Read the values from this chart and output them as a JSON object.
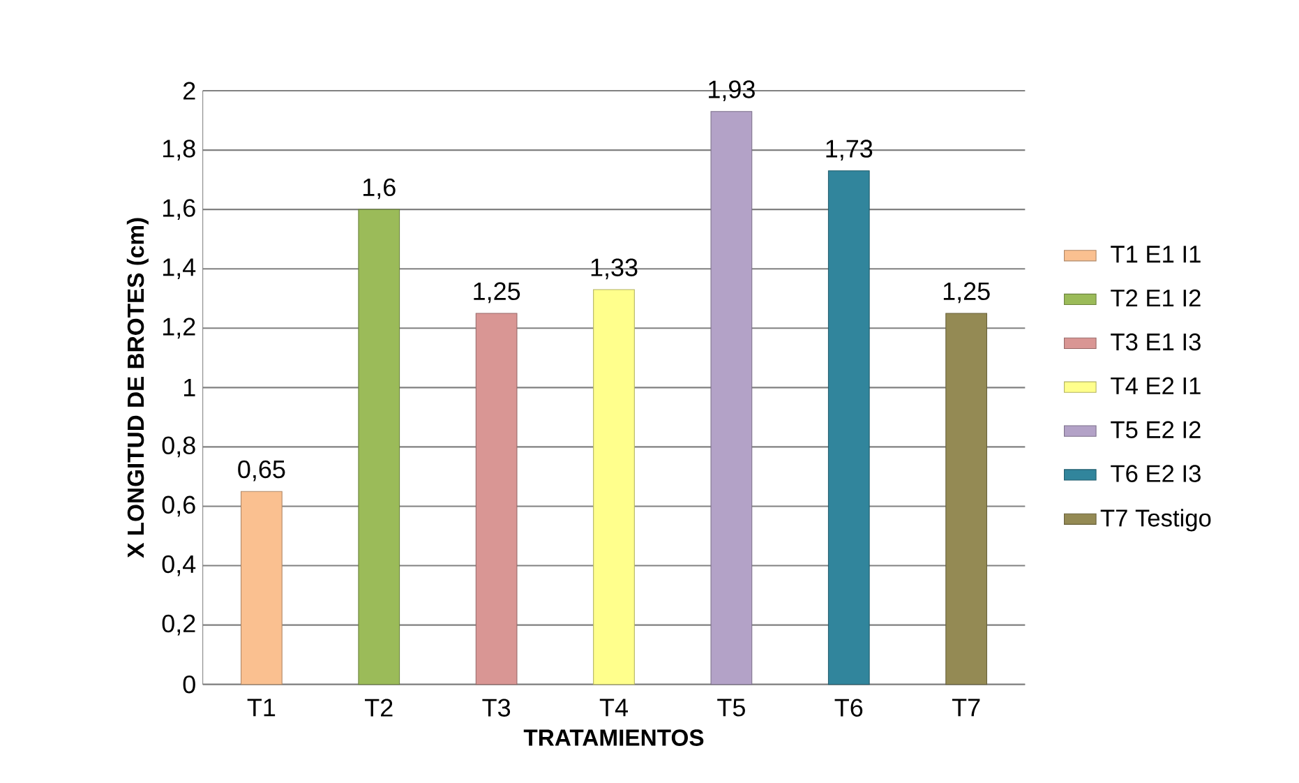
{
  "chart_data": {
    "type": "bar",
    "xlabel": "TRATAMIENTOS",
    "ylabel": "X LONGITUD DE BROTES (cm)",
    "categories": [
      "T1",
      "T2",
      "T3",
      "T4",
      "T5",
      "T6",
      "T7"
    ],
    "series": [
      {
        "name": "T1 E1 I1",
        "color": "#fac090",
        "values": [
          0.65,
          null,
          null,
          null,
          null,
          null,
          null
        ],
        "value_labels": [
          "0,65",
          null,
          null,
          null,
          null,
          null,
          null
        ]
      },
      {
        "name": "T2 E1 I2",
        "color": "#9bbb59",
        "values": [
          null,
          1.6,
          null,
          null,
          null,
          null,
          null
        ],
        "value_labels": [
          null,
          "1,6",
          null,
          null,
          null,
          null,
          null
        ]
      },
      {
        "name": "T3 E1 I3",
        "color": "#d99694",
        "values": [
          null,
          null,
          1.25,
          null,
          null,
          null,
          null
        ],
        "value_labels": [
          null,
          null,
          "1,25",
          null,
          null,
          null,
          null
        ]
      },
      {
        "name": "T4 E2 I1",
        "color": "#ffff8c",
        "values": [
          null,
          null,
          null,
          1.33,
          null,
          null,
          null
        ],
        "value_labels": [
          null,
          null,
          null,
          "1,33",
          null,
          null,
          null
        ]
      },
      {
        "name": "T5 E2 I2",
        "color": "#b3a2c7",
        "values": [
          null,
          null,
          null,
          null,
          1.93,
          null,
          null
        ],
        "value_labels": [
          null,
          null,
          null,
          null,
          "1,93",
          null,
          null
        ]
      },
      {
        "name": "T6 E2 I3",
        "color": "#31859c",
        "values": [
          null,
          null,
          null,
          null,
          null,
          1.73,
          null
        ],
        "value_labels": [
          null,
          null,
          null,
          null,
          null,
          "1,73",
          null
        ]
      },
      {
        "name": "T7 Testigo",
        "color": "#948a54",
        "values": [
          null,
          null,
          null,
          null,
          null,
          null,
          1.25
        ],
        "value_labels": [
          null,
          null,
          null,
          null,
          null,
          null,
          "1,25"
        ]
      }
    ],
    "ylim": [
      0,
      2
    ],
    "yticks": [
      0,
      {
        "value": 0.2,
        "label": "0,2"
      },
      {
        "value": 0.4,
        "label": "0,4"
      },
      {
        "value": 0.6,
        "label": "0,6"
      },
      {
        "value": 0.8,
        "label": "0,8"
      },
      1,
      {
        "value": 1.2,
        "label": "1,2"
      },
      {
        "value": 1.4,
        "label": "1,4"
      },
      {
        "value": 1.6,
        "label": "1,6"
      },
      {
        "value": 1.8,
        "label": "1,8"
      },
      2
    ],
    "grid": "y",
    "legend": "right"
  }
}
